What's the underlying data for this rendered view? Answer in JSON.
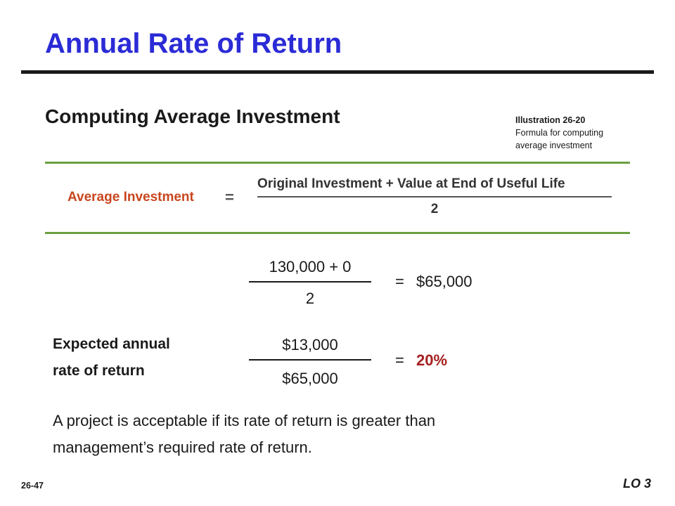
{
  "slide": {
    "title": "Annual Rate of Return",
    "subtitle": "Computing Average Investment",
    "illustration": {
      "id": "Illustration 26-20",
      "caption_line1": "Formula for computing",
      "caption_line2": "average investment"
    },
    "formula": {
      "label": "Average Investment",
      "equals": "=",
      "numerator": "Original Investment + Value at End of Useful Life",
      "denominator": "2"
    },
    "calc1": {
      "numerator": "130,000 + 0",
      "denominator": "2",
      "equals": "=",
      "result": "$65,000"
    },
    "calc2": {
      "label_line1": "Expected annual",
      "label_line2": "rate of return",
      "numerator": "$13,000",
      "denominator": "$65,000",
      "equals": "=",
      "result": "20%"
    },
    "conclusion_line1": "A project is acceptable if its rate of return is greater than",
    "conclusion_line2": "management’s required rate of return.",
    "slide_number": "26-47",
    "learning_objective": "LO 3"
  },
  "colors": {
    "title": "#2b2bd6",
    "formula_label": "#c8461e",
    "rule_green": "#6aa040",
    "percent": "#a52020"
  }
}
